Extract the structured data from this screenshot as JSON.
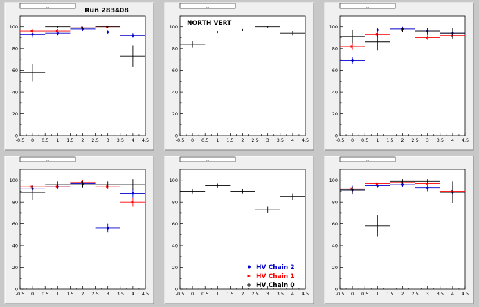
{
  "canvas_title": "Run 283408",
  "colors": {
    "background": "#c8c8c8",
    "frame": "#f0f0f0",
    "plot_area": "#ffffff",
    "hv_chain_2": "#0000cc",
    "hv_chain_1": "#ff0000",
    "hv_chain_0": "#000000"
  },
  "legend": {
    "entries": [
      {
        "label": "HV Chain 2",
        "color": "#0000cc",
        "marker": "diamond"
      },
      {
        "label": "HV Chain 1",
        "color": "#ff0000",
        "marker": "arrow"
      },
      {
        "label": "HV Chain 0",
        "color": "#000000",
        "marker": "cross"
      }
    ]
  },
  "chart_data": [
    {
      "type": "scatter",
      "panel_title": "...",
      "annotation": "",
      "xlim": [
        -0.5,
        4.5
      ],
      "ylim": [
        0,
        110
      ],
      "xticks": [
        "-0.5",
        "0",
        "0.5",
        "1",
        "1.5",
        "2",
        "2.5",
        "3",
        "3.5",
        "4",
        "4.5"
      ],
      "yticks": [
        "0",
        "20",
        "40",
        "60",
        "80",
        "100"
      ],
      "series": [
        {
          "color": "#0000cc",
          "marker": "diamond",
          "points": [
            [
              0,
              93,
              3
            ],
            [
              1,
              94,
              2
            ],
            [
              2,
              98,
              2
            ],
            [
              3,
              95,
              1
            ],
            [
              4,
              92,
              2
            ]
          ]
        },
        {
          "color": "#ff0000",
          "marker": "arrow",
          "points": [
            [
              0,
              96,
              2
            ],
            [
              1,
              96,
              2
            ],
            [
              2,
              99,
              1
            ],
            [
              3,
              100,
              1
            ]
          ]
        },
        {
          "color": "#000000",
          "marker": "cross",
          "points": [
            [
              0,
              58,
              8
            ],
            [
              1,
              100,
              1
            ],
            [
              2,
              99,
              1
            ],
            [
              3,
              100,
              1
            ],
            [
              4,
              73,
              10
            ]
          ]
        }
      ]
    },
    {
      "type": "scatter",
      "panel_title": "...",
      "annotation": "NORTH VERT",
      "xlim": [
        -0.5,
        4.5
      ],
      "ylim": [
        0,
        110
      ],
      "xticks": [
        "-0.5",
        "0",
        "0.5",
        "1",
        "1.5",
        "2",
        "2.5",
        "3",
        "3.5",
        "4",
        "4.5"
      ],
      "yticks": [
        "0",
        "20",
        "40",
        "60",
        "80",
        "100"
      ],
      "series": [
        {
          "color": "#000000",
          "marker": "cross",
          "points": [
            [
              0,
              84,
              3
            ],
            [
              1,
              95,
              1
            ],
            [
              2,
              97,
              1
            ],
            [
              3,
              100,
              1
            ],
            [
              4,
              94,
              2
            ]
          ]
        }
      ]
    },
    {
      "type": "scatter",
      "panel_title": "...",
      "annotation": "",
      "xlim": [
        -0.5,
        4.5
      ],
      "ylim": [
        0,
        110
      ],
      "xticks": [
        "-0.5",
        "0",
        "0.5",
        "1",
        "1.5",
        "2",
        "2.5",
        "3",
        "3.5",
        "4",
        "4.5"
      ],
      "yticks": [
        "0",
        "20",
        "40",
        "60",
        "80",
        "100"
      ],
      "series": [
        {
          "color": "#0000cc",
          "marker": "diamond",
          "points": [
            [
              0,
              69,
              3
            ],
            [
              1,
              97,
              2
            ],
            [
              2,
              98,
              2
            ],
            [
              3,
              96,
              3
            ],
            [
              4,
              94,
              4
            ]
          ]
        },
        {
          "color": "#ff0000",
          "marker": "arrow",
          "points": [
            [
              0,
              82,
              3
            ],
            [
              1,
              93,
              2
            ],
            [
              2,
              97,
              2
            ],
            [
              3,
              90,
              2
            ],
            [
              4,
              92,
              2
            ]
          ]
        },
        {
          "color": "#000000",
          "marker": "cross",
          "points": [
            [
              0,
              91,
              6
            ],
            [
              1,
              86,
              8
            ],
            [
              2,
              97,
              2
            ],
            [
              3,
              96,
              3
            ],
            [
              4,
              94,
              5
            ]
          ]
        }
      ]
    },
    {
      "type": "scatter",
      "panel_title": "...",
      "annotation": "",
      "xlim": [
        -0.5,
        4.5
      ],
      "ylim": [
        0,
        110
      ],
      "xticks": [
        "-0.5",
        "0",
        "0.5",
        "1",
        "1.5",
        "2",
        "2.5",
        "3",
        "3.5",
        "4",
        "4.5"
      ],
      "yticks": [
        "0",
        "20",
        "40",
        "60",
        "80",
        "100"
      ],
      "series": [
        {
          "color": "#0000cc",
          "marker": "diamond",
          "points": [
            [
              0,
              92,
              3
            ],
            [
              1,
              94,
              2
            ],
            [
              2,
              97,
              3
            ],
            [
              3,
              56,
              4
            ],
            [
              4,
              88,
              4
            ]
          ]
        },
        {
          "color": "#ff0000",
          "marker": "arrow",
          "points": [
            [
              0,
              94,
              2
            ],
            [
              1,
              94,
              2
            ],
            [
              2,
              98,
              2
            ],
            [
              3,
              94,
              2
            ],
            [
              4,
              80,
              4
            ]
          ]
        },
        {
          "color": "#000000",
          "marker": "cross",
          "points": [
            [
              0,
              89,
              7
            ],
            [
              1,
              96,
              3
            ],
            [
              2,
              96,
              3
            ],
            [
              3,
              96,
              3
            ],
            [
              4,
              96,
              5
            ]
          ]
        }
      ]
    },
    {
      "type": "scatter",
      "panel_title": "...",
      "annotation": "",
      "xlim": [
        -0.5,
        4.5
      ],
      "ylim": [
        0,
        110
      ],
      "xticks": [
        "-0.5",
        "0",
        "0.5",
        "1",
        "1.5",
        "2",
        "2.5",
        "3",
        "3.5",
        "4",
        "4.5"
      ],
      "yticks": [
        "0",
        "20",
        "40",
        "60",
        "80",
        "100"
      ],
      "series": [
        {
          "color": "#000000",
          "marker": "cross",
          "points": [
            [
              0,
              90,
              2
            ],
            [
              1,
              95,
              2
            ],
            [
              2,
              90,
              2
            ],
            [
              3,
              73,
              3
            ],
            [
              4,
              85,
              3
            ]
          ]
        }
      ]
    },
    {
      "type": "scatter",
      "panel_title": "...",
      "annotation": "",
      "xlim": [
        -0.5,
        4.5
      ],
      "ylim": [
        0,
        110
      ],
      "xticks": [
        "-0.5",
        "0",
        "0.5",
        "1",
        "1.5",
        "2",
        "2.5",
        "3",
        "3.5",
        "4",
        "4.5"
      ],
      "yticks": [
        "0",
        "20",
        "40",
        "60",
        "80",
        "100"
      ],
      "series": [
        {
          "color": "#0000cc",
          "marker": "diamond",
          "points": [
            [
              0,
              91,
              4
            ],
            [
              1,
              95,
              2
            ],
            [
              2,
              96,
              2
            ],
            [
              3,
              93,
              3
            ],
            [
              4,
              89,
              6
            ]
          ]
        },
        {
          "color": "#ff0000",
          "marker": "arrow",
          "points": [
            [
              0,
              92,
              2
            ],
            [
              1,
              97,
              1
            ],
            [
              2,
              98,
              1
            ],
            [
              3,
              97,
              2
            ],
            [
              4,
              90,
              2
            ]
          ]
        },
        {
          "color": "#000000",
          "marker": "cross",
          "points": [
            [
              0,
              91,
              3
            ],
            [
              1,
              58,
              10
            ],
            [
              2,
              99,
              2
            ],
            [
              3,
              99,
              2
            ],
            [
              4,
              89,
              10
            ]
          ]
        }
      ]
    }
  ]
}
